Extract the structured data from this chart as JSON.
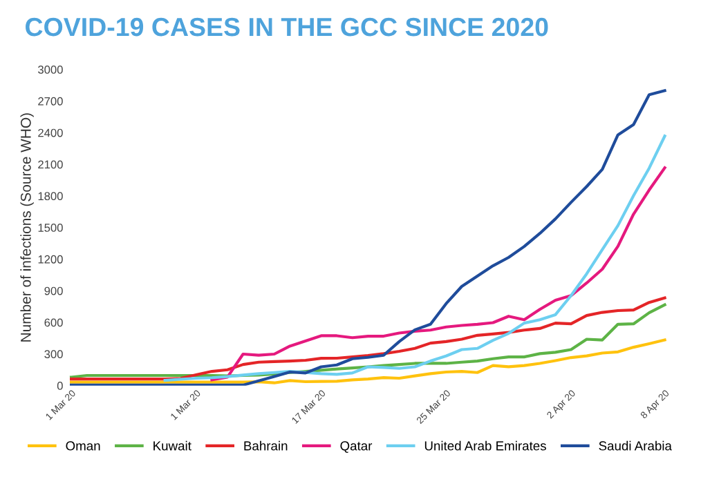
{
  "chart_data": {
    "type": "line",
    "title": "COVID-19 CASES IN THE GCC SINCE 2020",
    "ylabel": "Number of infections (Source WHO)",
    "categories": [
      "1 Mar 20",
      null,
      null,
      null,
      null,
      null,
      null,
      null,
      "1 Mar 20",
      null,
      null,
      null,
      null,
      null,
      null,
      null,
      "17 Mar 20",
      null,
      null,
      null,
      null,
      null,
      null,
      null,
      "25 Mar 20",
      null,
      null,
      null,
      null,
      null,
      null,
      null,
      "2 Apr 20",
      null,
      null,
      null,
      null,
      null,
      "8 Apr 20"
    ],
    "ylim": [
      0,
      3000
    ],
    "yticks": [
      0,
      300,
      600,
      900,
      1200,
      1500,
      1800,
      2100,
      2400,
      2700,
      3000
    ],
    "grid": false,
    "legend": "bottom",
    "marker": "none",
    "line_style": "solid",
    "series": [
      {
        "name": "Oman",
        "color": "#ffc20e",
        "values": [
          33,
          33,
          33,
          33,
          33,
          33,
          33,
          33,
          33,
          33,
          33,
          33,
          36,
          26,
          48,
          37,
          40,
          41,
          54,
          63,
          76,
          70,
          92,
          113,
          129,
          135,
          124,
          190,
          179,
          190,
          211,
          237,
          266,
          282,
          309,
          320,
          364,
          397,
          433
        ]
      },
      {
        "name": "Kuwait",
        "color": "#5db346",
        "values": [
          80,
          96,
          96,
          96,
          96,
          96,
          96,
          96,
          96,
          96,
          92,
          96,
          100,
          110,
          124,
          135,
          146,
          157,
          167,
          178,
          190,
          200,
          211,
          211,
          211,
          222,
          233,
          255,
          272,
          272,
          303,
          316,
          342,
          440,
          433,
          582,
          586,
          691,
          767
        ]
      },
      {
        "name": "Bahrain",
        "color": "#e42527",
        "values": [
          62,
          62,
          62,
          62,
          62,
          62,
          62,
          68,
          103,
          135,
          150,
          200,
          222,
          228,
          233,
          240,
          259,
          260,
          272,
          285,
          303,
          325,
          353,
          403,
          418,
          440,
          477,
          490,
          505,
          527,
          542,
          593,
          586,
          665,
          695,
          712,
          717,
          789,
          832
        ]
      },
      {
        "name": "Qatar",
        "color": "#e5197e",
        "values": [
          null,
          null,
          null,
          null,
          null,
          null,
          null,
          null,
          null,
          55,
          80,
          299,
          288,
          299,
          375,
          424,
          473,
          473,
          455,
          469,
          469,
          499,
          516,
          527,
          556,
          571,
          582,
          597,
          658,
          625,
          723,
          810,
          854,
          974,
          1105,
          1322,
          1627,
          1856,
          2067
        ]
      },
      {
        "name": "United Arab Emirates",
        "color": "#6dcff0",
        "values": [
          null,
          null,
          null,
          null,
          null,
          null,
          50,
          60,
          70,
          75,
          85,
          100,
          113,
          124,
          135,
          125,
          113,
          107,
          120,
          178,
          172,
          163,
          178,
          233,
          281,
          342,
          353,
          429,
          495,
          593,
          625,
          673,
          854,
          1061,
          1290,
          1518,
          1802,
          2063,
          2368
        ]
      },
      {
        "name": "Saudi Arabia",
        "color": "#1f4c9b",
        "values": [
          5,
          5,
          5,
          5,
          5,
          5,
          5,
          5,
          5,
          5,
          5,
          5,
          46,
          87,
          129,
          120,
          178,
          196,
          255,
          268,
          288,
          418,
          529,
          582,
          778,
          941,
          1039,
          1137,
          1216,
          1320,
          1444,
          1582,
          1739,
          1889,
          2052,
          2379,
          2477,
          2760,
          2799
        ]
      }
    ]
  }
}
